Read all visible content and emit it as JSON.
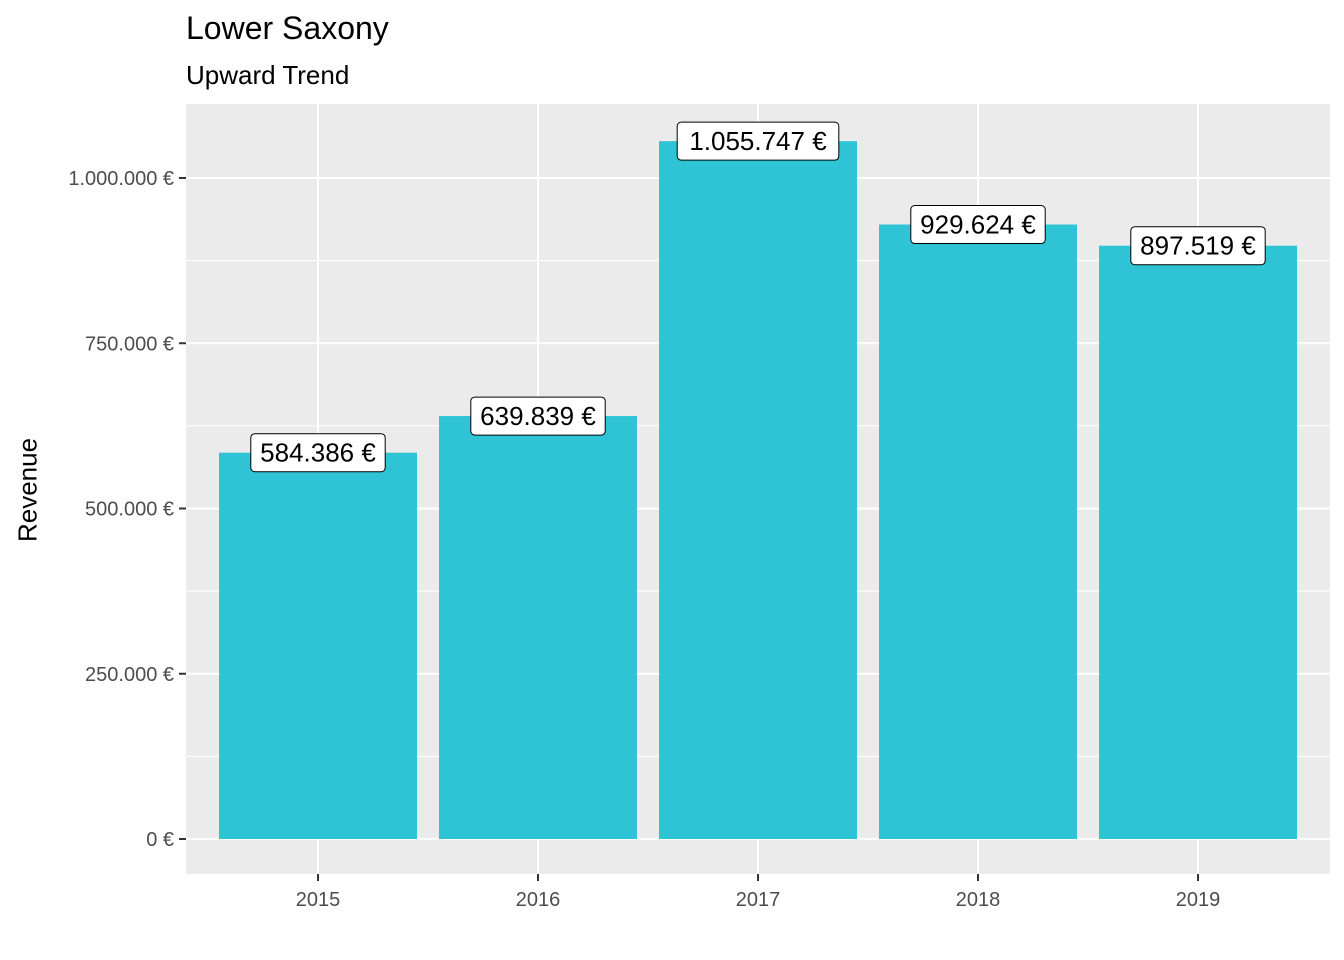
{
  "chart_data": {
    "type": "bar",
    "title": "Lower Saxony",
    "subtitle": "Upward Trend",
    "xlabel": "",
    "ylabel": "Revenue",
    "categories": [
      "2015",
      "2016",
      "2017",
      "2018",
      "2019"
    ],
    "values": [
      584386,
      639839,
      1055747,
      929624,
      897519
    ],
    "data_labels": [
      "584.386 €",
      "639.839 €",
      "1.055.747 €",
      "929.624 €",
      "897.519 €"
    ],
    "y_ticks": [
      0,
      250000,
      500000,
      750000,
      1000000
    ],
    "y_tick_labels": [
      "0 €",
      "250.000 €",
      "500.000 €",
      "750.000 €",
      "1.000.000 €"
    ],
    "ylim": [
      0,
      1108000
    ],
    "grid": true,
    "legend": "none",
    "colors": {
      "bar": "#2EC4D5",
      "panel": "#EBEBEB",
      "grid": "#FFFFFF",
      "tick_text": "#4D4D4D"
    }
  }
}
